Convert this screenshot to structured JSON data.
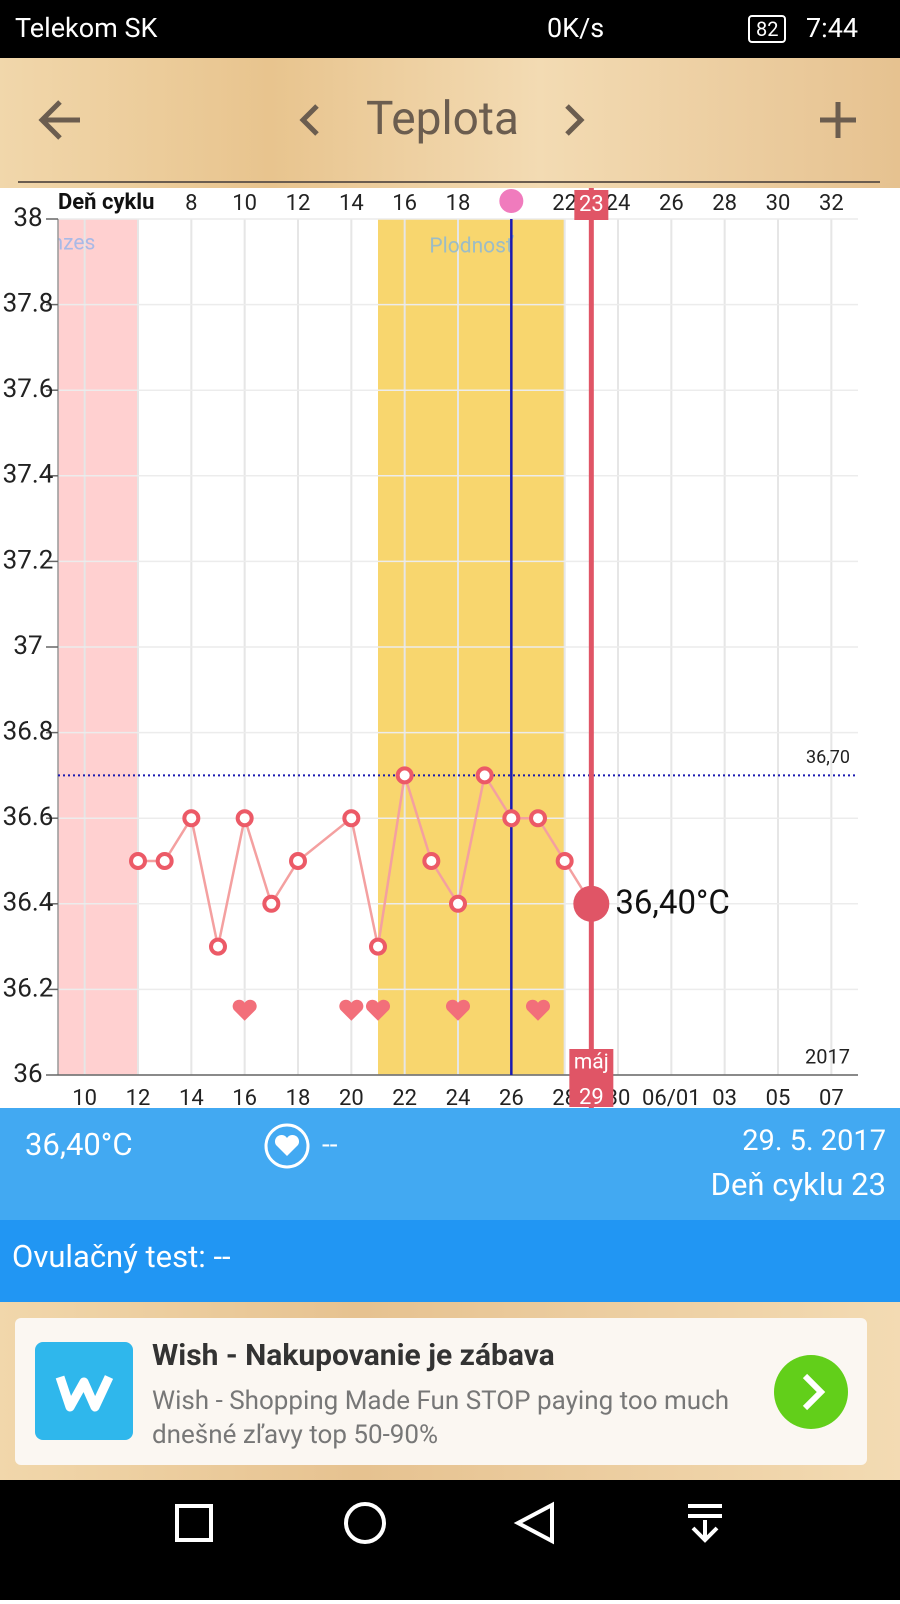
{
  "status_bar": {
    "carrier": "Telekom SK",
    "speed": "0K/s",
    "battery": "82",
    "time": "7:44"
  },
  "toolbar": {
    "title": "Teplota"
  },
  "chart_data": {
    "type": "line",
    "x_axis_title": "Deň cyklu",
    "year": "2017",
    "x": [
      12,
      13,
      14,
      15,
      16,
      17,
      18,
      20,
      21,
      22,
      23,
      24,
      25,
      26,
      27,
      28,
      29
    ],
    "series": [
      {
        "color": "#f4a0a0",
        "values": [
          36.5,
          36.5,
          36.6,
          36.3,
          36.6,
          36.4,
          36.5,
          36.6,
          36.3,
          36.7,
          36.5,
          36.4,
          36.7,
          36.6,
          36.6,
          36.5,
          36.4
        ]
      }
    ],
    "xlim": [
      9,
      39
    ],
    "xticks": [
      10,
      12,
      14,
      16,
      18,
      20,
      22,
      24,
      26,
      28,
      30,
      {
        "value": 32,
        "label": "06/01"
      },
      {
        "value": 34,
        "label": "03"
      },
      {
        "value": 36,
        "label": "05"
      },
      {
        "value": 38,
        "label": "07"
      }
    ],
    "x2lim": [
      3,
      33
    ],
    "x2ticks": [
      8,
      10,
      12,
      14,
      16,
      18,
      22,
      24,
      26,
      28,
      30,
      32
    ],
    "ylim": [
      36,
      38
    ],
    "yticks": [
      36,
      36.2,
      36.4,
      36.6,
      36.8,
      37,
      37.2,
      37.4,
      37.6,
      37.8,
      38
    ],
    "grid": true,
    "regions": [
      {
        "label": "Menzes",
        "start": 9,
        "end": 12,
        "color": "#ffd0d0"
      },
      {
        "label": "Plodnosť",
        "start": 21,
        "end": 28,
        "color": "#f8d66e"
      }
    ],
    "ovulation_x": 26,
    "reference": {
      "value": 36.7,
      "label": "36,70"
    },
    "hearts": [
      16,
      20,
      21,
      24,
      27
    ],
    "selected": {
      "x": 29,
      "cycle_day": 23,
      "month": "máj",
      "value": 36.4,
      "label": "36,40°C"
    }
  },
  "info": {
    "temperature": "36,40°C",
    "heart": "--",
    "date": "29. 5. 2017",
    "cycle_day": "Deň cyklu 23",
    "ovulation_test": "Ovulačný test: --"
  },
  "ad": {
    "title": "Wish - Nakupovanie je zábava",
    "text": "Wish - Shopping Made Fun STOP paying too much dnešné zľavy top 50-90%"
  }
}
